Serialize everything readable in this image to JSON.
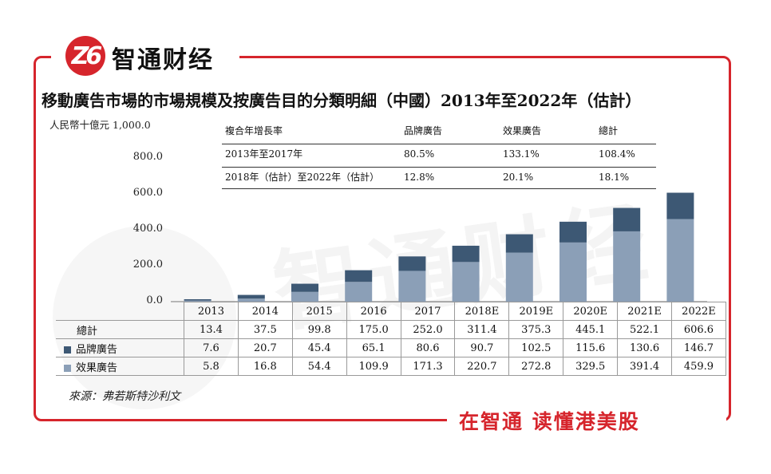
{
  "brand": {
    "logo_text": "Z6",
    "name": "智通财经",
    "slogan": "在智通  读懂港美股"
  },
  "watermark": "智通财经",
  "colors": {
    "frame": "#d6252c",
    "brand_segment": "#3d5874",
    "performance_segment": "#8b9fb7"
  },
  "chart_data": {
    "type": "bar",
    "stacked": true,
    "title": "移動廣告市場的市場規模及按廣告目的分類明細（中國）2013年至2022年（估計）",
    "ylabel": "人民幣十億元",
    "ylim": [
      0,
      1000
    ],
    "yticks": [
      "0.0",
      "200.0",
      "400.0",
      "600.0",
      "800.0",
      "1,000.0"
    ],
    "categories": [
      "2013",
      "2014",
      "2015",
      "2016",
      "2017",
      "2018E",
      "2019E",
      "2020E",
      "2021E",
      "2022E"
    ],
    "series": [
      {
        "name": "效果廣告",
        "values": [
          5.8,
          16.8,
          54.4,
          109.9,
          171.3,
          220.7,
          272.8,
          329.5,
          391.4,
          459.9
        ]
      },
      {
        "name": "品牌廣告",
        "values": [
          7.6,
          20.7,
          45.4,
          65.1,
          80.6,
          90.7,
          102.5,
          115.6,
          130.6,
          146.7
        ]
      }
    ],
    "totals_label": "總計",
    "totals": [
      "13.4",
      "37.5",
      "99.8",
      "175.0",
      "252.0",
      "311.4",
      "375.3",
      "445.1",
      "522.1",
      "606.6"
    ],
    "table_rows": [
      {
        "label": "總計",
        "values": [
          "13.4",
          "37.5",
          "99.8",
          "175.0",
          "252.0",
          "311.4",
          "375.3",
          "445.1",
          "522.1",
          "606.6"
        ]
      },
      {
        "label": "品牌廣告",
        "swatch": "brand",
        "values": [
          "7.6",
          "20.7",
          "45.4",
          "65.1",
          "80.6",
          "90.7",
          "102.5",
          "115.6",
          "130.6",
          "146.7"
        ]
      },
      {
        "label": "效果廣告",
        "swatch": "performance",
        "values": [
          "5.8",
          "16.8",
          "54.4",
          "109.9",
          "171.3",
          "220.7",
          "272.8",
          "329.5",
          "391.4",
          "459.9"
        ]
      }
    ],
    "cagr_table": {
      "header": [
        "複合年增長率",
        "品牌廣告",
        "效果廣告",
        "總計"
      ],
      "rows": [
        [
          "2013年至2017年",
          "80.5%",
          "133.1%",
          "108.4%"
        ],
        [
          "2018年（估計）至2022年（估計）",
          "12.8%",
          "20.1%",
          "18.1%"
        ]
      ]
    },
    "source": "來源：弗若斯特沙利文"
  }
}
